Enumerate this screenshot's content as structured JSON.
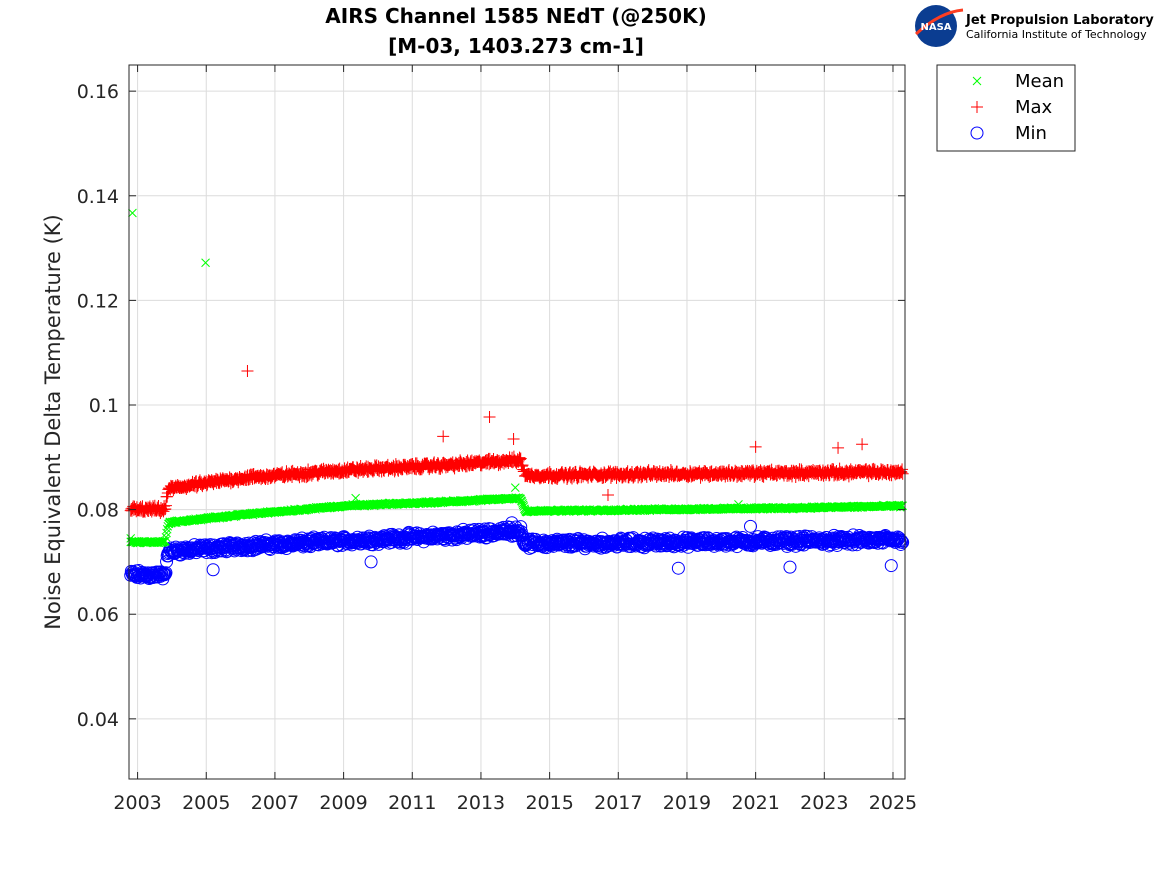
{
  "logo": {
    "badge_text": "NASA",
    "name": "Jet Propulsion Laboratory",
    "subtitle": "California Institute of Technology"
  },
  "chart_data": {
    "type": "scatter",
    "title": [
      "AIRS Channel 1585 NEdT (@250K)",
      "[M-03, 1403.273 cm-1]"
    ],
    "xlabel": "",
    "ylabel": "Noise Equivalent Delta Temperature (K)",
    "xlim": [
      2002.75,
      2025.35
    ],
    "ylim": [
      0.0285,
      0.165
    ],
    "xticks": [
      2003,
      2005,
      2007,
      2009,
      2011,
      2013,
      2015,
      2017,
      2019,
      2021,
      2023,
      2025
    ],
    "yticks": [
      0.04,
      0.06,
      0.08,
      0.1,
      0.12,
      0.14,
      0.16
    ],
    "ytick_labels": [
      "0.04",
      "0.06",
      "0.08",
      "0.1",
      "0.12",
      "0.14",
      "0.16"
    ],
    "grid": true,
    "legend_position": "outside-top-right",
    "series": [
      {
        "name": "Mean",
        "marker": "x",
        "color": "#00ff00",
        "trend": [
          [
            2002.8,
            0.0738
          ],
          [
            2003.8,
            0.0738
          ],
          [
            2003.9,
            0.0775
          ],
          [
            2006,
            0.079
          ],
          [
            2009,
            0.0807
          ],
          [
            2012,
            0.0815
          ],
          [
            2014.15,
            0.0822
          ],
          [
            2014.3,
            0.0797
          ],
          [
            2018,
            0.08
          ],
          [
            2022,
            0.0803
          ],
          [
            2025.3,
            0.0807
          ]
        ],
        "outliers": [
          [
            2002.85,
            0.1367
          ],
          [
            2004.98,
            0.1272
          ],
          [
            2002.8,
            0.0745
          ],
          [
            2009.35,
            0.0822
          ],
          [
            2014.0,
            0.0842
          ],
          [
            2020.5,
            0.081
          ]
        ]
      },
      {
        "name": "Max",
        "marker": "+",
        "color": "#ff0000",
        "trend": [
          [
            2002.8,
            0.08
          ],
          [
            2003.8,
            0.08
          ],
          [
            2003.9,
            0.084
          ],
          [
            2006,
            0.086
          ],
          [
            2009,
            0.0875
          ],
          [
            2012,
            0.0885
          ],
          [
            2014.15,
            0.0895
          ],
          [
            2014.3,
            0.0865
          ],
          [
            2018,
            0.0868
          ],
          [
            2022,
            0.087
          ],
          [
            2025.3,
            0.0872
          ]
        ],
        "outliers": [
          [
            2006.2,
            0.1065
          ],
          [
            2013.25,
            0.0977
          ],
          [
            2011.9,
            0.094
          ],
          [
            2013.95,
            0.0935
          ],
          [
            2016.7,
            0.0828
          ],
          [
            2021.0,
            0.092
          ],
          [
            2023.4,
            0.0918
          ],
          [
            2024.1,
            0.0925
          ]
        ]
      },
      {
        "name": "Min",
        "marker": "o",
        "color": "#0000ff",
        "trend": [
          [
            2002.8,
            0.0675
          ],
          [
            2003.8,
            0.0675
          ],
          [
            2003.9,
            0.072
          ],
          [
            2006,
            0.073
          ],
          [
            2009,
            0.074
          ],
          [
            2012,
            0.075
          ],
          [
            2014.15,
            0.076
          ],
          [
            2014.3,
            0.0735
          ],
          [
            2018,
            0.0737
          ],
          [
            2022,
            0.074
          ],
          [
            2025.3,
            0.0742
          ]
        ],
        "outliers": [
          [
            2005.2,
            0.0685
          ],
          [
            2018.75,
            0.0688
          ],
          [
            2022.0,
            0.069
          ],
          [
            2024.95,
            0.0693
          ],
          [
            2020.85,
            0.0768
          ],
          [
            2013.9,
            0.0775
          ],
          [
            2009.8,
            0.07
          ]
        ]
      }
    ]
  }
}
